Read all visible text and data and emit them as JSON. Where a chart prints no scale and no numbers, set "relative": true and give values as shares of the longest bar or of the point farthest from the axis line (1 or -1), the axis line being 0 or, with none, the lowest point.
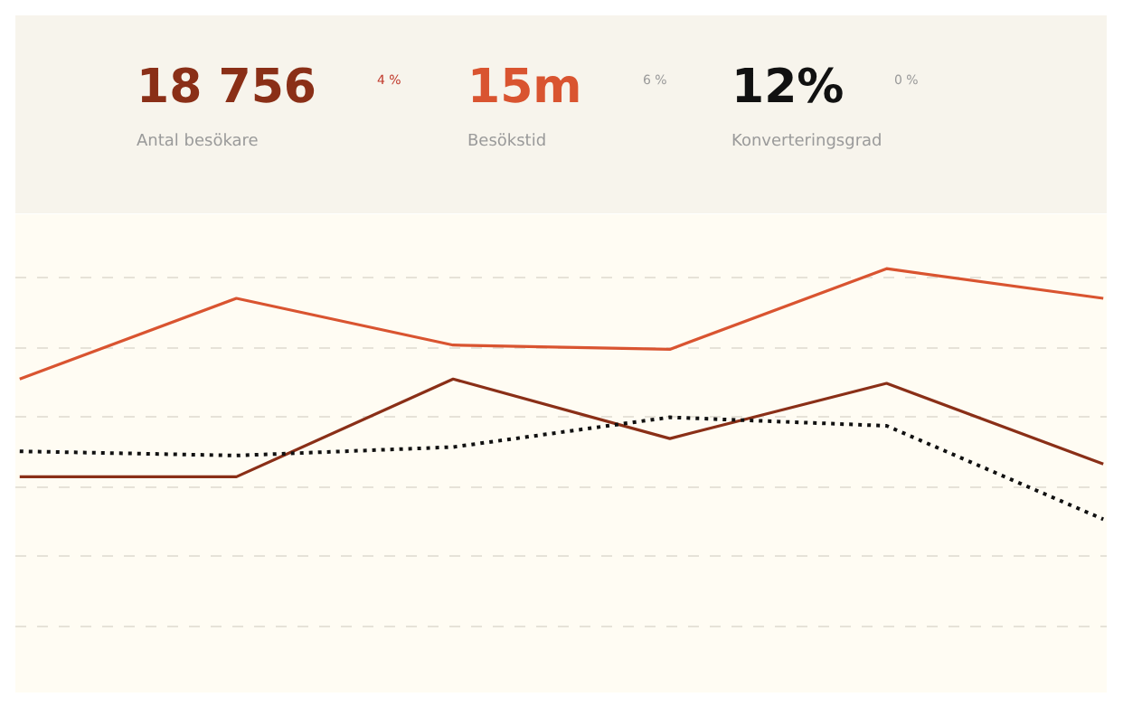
{
  "chart_data": [
    {
      "type": "other",
      "annotations": [
        "18 756",
        "Antal besökare",
        "4 %",
        "15m",
        "Besökstid",
        "6 %",
        "12%",
        "Konverteringsgrad",
        "0 %"
      ]
    },
    {
      "type": "line",
      "relative": true,
      "grid": "y",
      "categories": [
        null,
        null,
        null,
        null,
        null,
        null
      ],
      "series": [
        {
          "color": "#d95430",
          "values": [
            0.74,
            0.93,
            0.82,
            0.81,
            1.0,
            0.93
          ]
        },
        {
          "color": "#8a2f17",
          "values": [
            0.51,
            0.51,
            0.74,
            0.6,
            0.73,
            0.54
          ]
        },
        {
          "color": "#111111",
          "line_style": "dotted",
          "values": [
            0.57,
            0.56,
            0.58,
            0.65,
            0.63,
            0.41
          ]
        }
      ]
    }
  ]
}
